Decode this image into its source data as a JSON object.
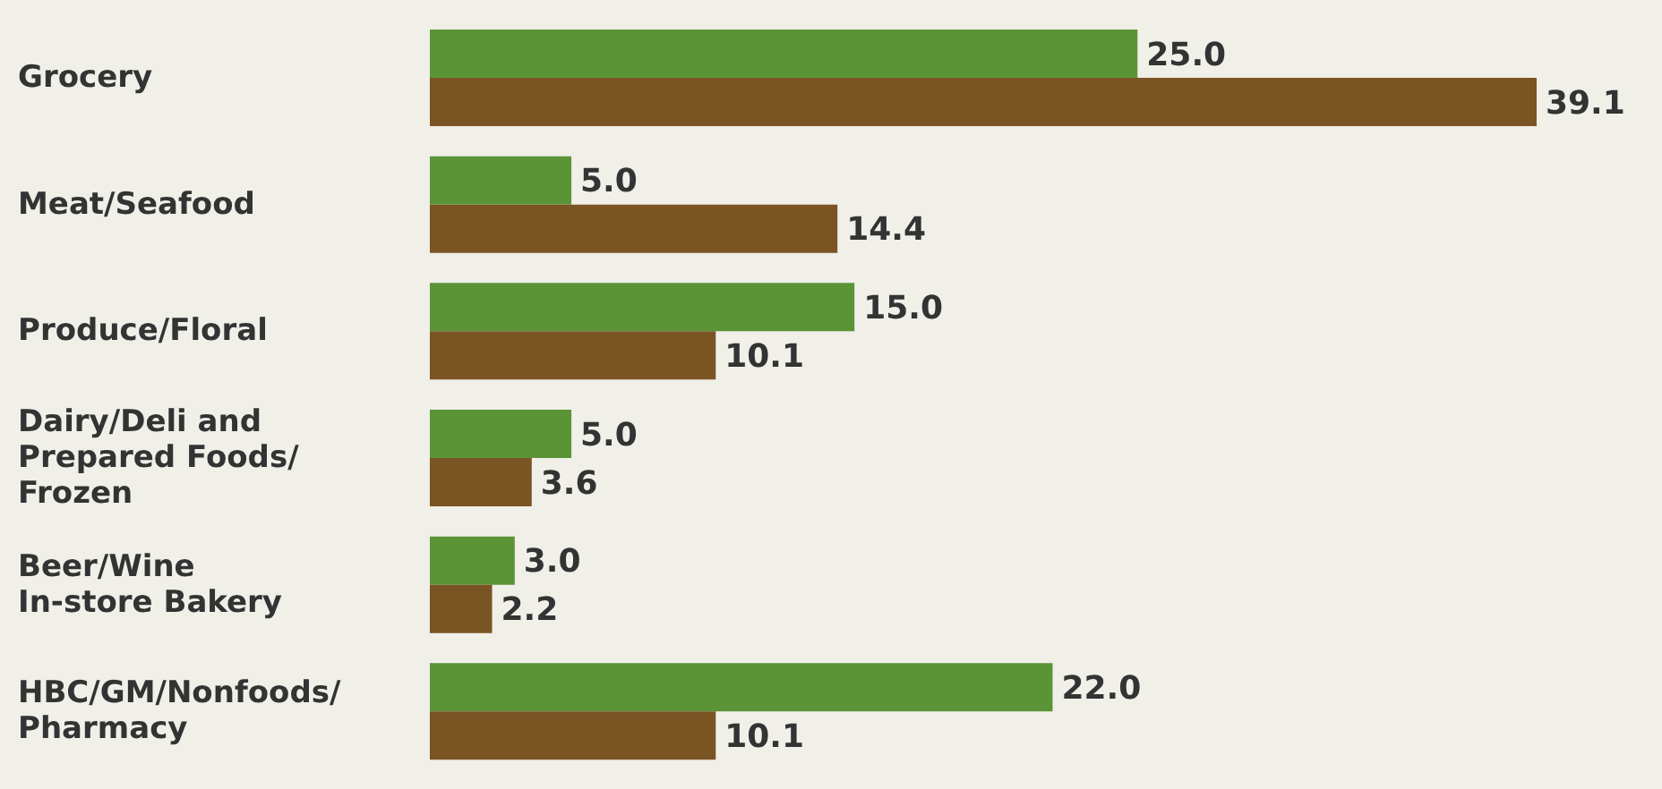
{
  "chart_data": {
    "type": "bar",
    "orientation": "horizontal",
    "categories": [
      "Grocery",
      "Meat/Seafood",
      "Produce/Floral",
      "Dairy/Deli and Prepared Foods/ Frozen",
      "Beer/Wine In-store Bakery",
      "HBC/GM/Nonfoods/ Pharmacy"
    ],
    "series": [
      {
        "color": "#5b9437",
        "values": [
          25,
          5,
          15,
          5,
          3,
          22
        ],
        "value_labels": [
          "25.0",
          "5.0",
          "15.0",
          "5.0",
          "3.0",
          "22.0"
        ]
      },
      {
        "color": "#7b5424",
        "values": [
          39.1,
          14.4,
          10.1,
          3.6,
          2.2,
          10.1
        ],
        "value_labels": [
          "39.1",
          "14.4",
          "10.1",
          "3.6",
          "2.2",
          "10.1"
        ]
      }
    ],
    "grid": false,
    "legend": false
  }
}
